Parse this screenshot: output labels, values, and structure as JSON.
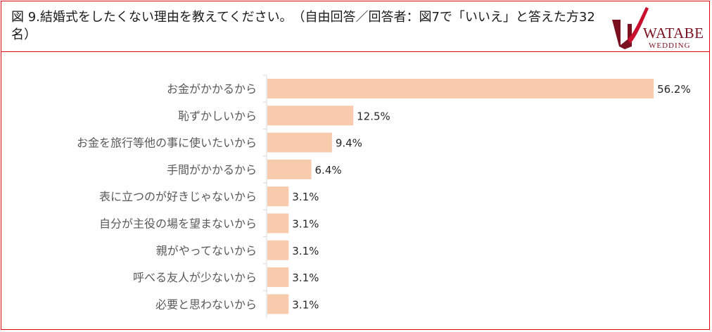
{
  "header": {
    "title": "図 9.結婚式をしたくない理由を教えてください。　（自由回答／回答者：図7で「いいえ」と答えた方32名）",
    "logo_main": "WATABE",
    "logo_sub": "WEDDING"
  },
  "colors": {
    "frame": "#e0000f",
    "bar": "#f8cbad",
    "logo_red": "#c8102e",
    "logo_dark": "#7a1020"
  },
  "chart_data": {
    "type": "bar",
    "orientation": "horizontal",
    "title": "",
    "xlabel": "",
    "ylabel": "",
    "value_unit": "%",
    "xlim": [
      0,
      60
    ],
    "categories": [
      "お金がかかるから",
      "恥ずかしいから",
      "お金を旅行等他の事に使いたいから",
      "手間がかかるから",
      "表に立つのが好きじゃないから",
      "自分が主役の場を望まないから",
      "親がやってないから",
      "呼べる友人が少ないから",
      "必要と思わないから"
    ],
    "values": [
      56.2,
      12.5,
      9.4,
      6.4,
      3.1,
      3.1,
      3.1,
      3.1,
      3.1
    ],
    "value_labels": [
      "56.2%",
      "12.5%",
      "9.4%",
      "6.4%",
      "3.1%",
      "3.1%",
      "3.1%",
      "3.1%",
      "3.1%"
    ],
    "grid": false,
    "legend": "none"
  }
}
